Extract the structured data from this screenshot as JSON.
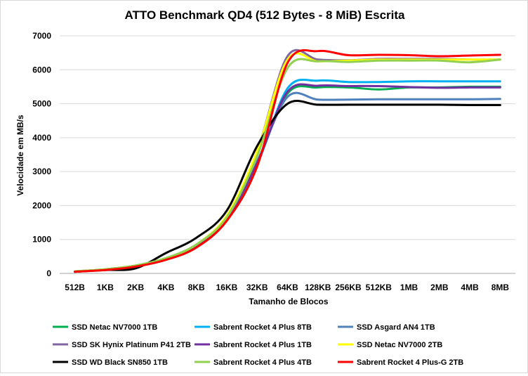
{
  "chart_data": {
    "type": "line",
    "title": "ATTO Benchmark QD4 (512 Bytes - 8 MiB) Escrita",
    "xlabel": "Tamanho de Blocos",
    "ylabel": "Velocidade em MB/s",
    "ylim": [
      0,
      7000
    ],
    "yticks": [
      0,
      1000,
      2000,
      3000,
      4000,
      5000,
      6000,
      7000
    ],
    "grid": true,
    "legend_position": "bottom",
    "categories": [
      "512B",
      "1KB",
      "2KB",
      "4KB",
      "8KB",
      "16KB",
      "32KB",
      "64KB",
      "128KB",
      "256KB",
      "512KB",
      "1MB",
      "2MB",
      "4MB",
      "8MB"
    ],
    "series": [
      {
        "name": "SSD Netac NV7000 1TB",
        "color": "#00b050",
        "values": [
          60,
          120,
          230,
          450,
          850,
          1650,
          3250,
          5300,
          5480,
          5480,
          5420,
          5480,
          5480,
          5500,
          5500
        ]
      },
      {
        "name": "Sabrent Rocket 4 Plus 8TB",
        "color": "#00b0f0",
        "values": [
          50,
          110,
          210,
          430,
          820,
          1600,
          3200,
          5450,
          5680,
          5640,
          5640,
          5660,
          5660,
          5660,
          5660
        ]
      },
      {
        "name": "SSD Asgard AN4 1TB",
        "color": "#4f81bd",
        "values": [
          50,
          110,
          210,
          430,
          820,
          1650,
          3300,
          5200,
          5120,
          5120,
          5130,
          5130,
          5130,
          5130,
          5140
        ]
      },
      {
        "name": "SSD SK Hynix Platinum P41 2TB",
        "color": "#8064a2",
        "values": [
          60,
          120,
          230,
          450,
          850,
          1700,
          3600,
          6400,
          6300,
          6280,
          6320,
          6320,
          6320,
          6300,
          6300
        ]
      },
      {
        "name": "Sabrent Rocket 4 Plus 1TB",
        "color": "#7030a0",
        "values": [
          50,
          110,
          210,
          430,
          820,
          1600,
          3250,
          5350,
          5530,
          5520,
          5520,
          5490,
          5470,
          5480,
          5480
        ]
      },
      {
        "name": "SSD Netac NV7000 2TB",
        "color": "#ffff00",
        "values": [
          60,
          120,
          230,
          450,
          850,
          1700,
          3600,
          6300,
          6250,
          6270,
          6300,
          6300,
          6300,
          6300,
          6300
        ]
      },
      {
        "name": "SSD WD Black SN850 1TB",
        "color": "#000000",
        "values": [
          50,
          100,
          150,
          600,
          1050,
          1850,
          3750,
          5000,
          4970,
          4970,
          4970,
          4970,
          4970,
          4960,
          4960
        ]
      },
      {
        "name": "Sabrent Rocket 4 Plus 4TB",
        "color": "#92d050",
        "values": [
          60,
          120,
          230,
          450,
          850,
          1650,
          3450,
          6050,
          6250,
          6230,
          6270,
          6270,
          6270,
          6220,
          6300
        ]
      },
      {
        "name": "Sabrent Rocket 4 Plus-G 2TB",
        "color": "#ff0000",
        "values": [
          50,
          100,
          200,
          400,
          760,
          1550,
          3150,
          6200,
          6550,
          6430,
          6440,
          6430,
          6400,
          6420,
          6440
        ]
      }
    ]
  }
}
